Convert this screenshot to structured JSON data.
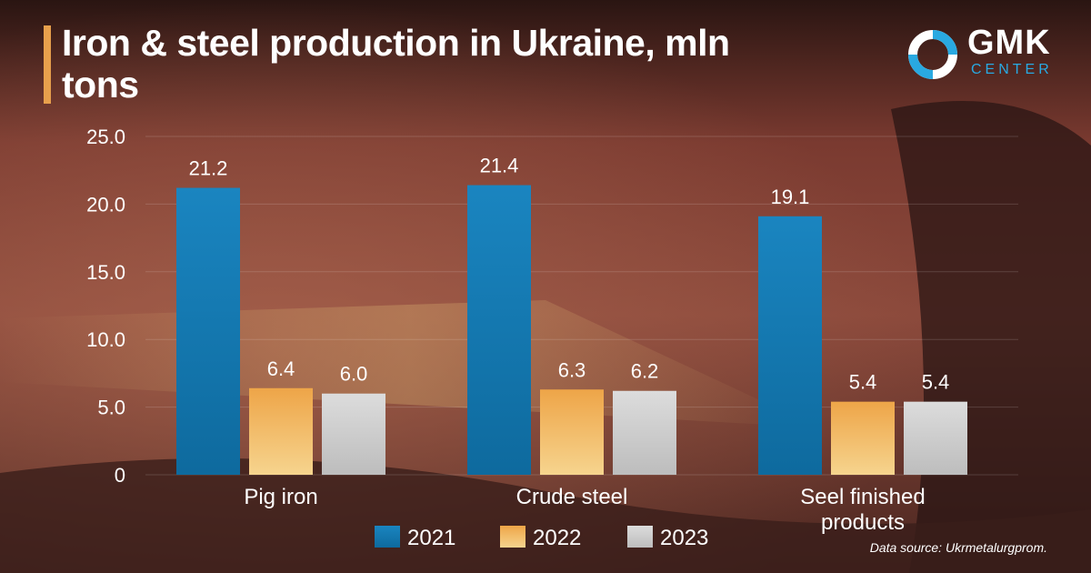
{
  "title": "Iron & steel production in Ukraine, mln tons",
  "logo": {
    "main": "GMK",
    "sub": "CENTER"
  },
  "source": "Data source: Ukrmetalurgprom.",
  "colors": {
    "2021": "#1b86bd",
    "2022": "#eea548",
    "2023": "#d4d4d4",
    "accent": "#e8a04c"
  },
  "chart_data": {
    "type": "bar",
    "title": "Iron & steel production in Ukraine, mln tons",
    "categories": [
      "Pig iron",
      "Crude steel",
      "Seel finished products"
    ],
    "series": [
      {
        "name": "2021",
        "values": [
          21.2,
          21.4,
          19.1
        ],
        "labels": [
          "21.2",
          "21.4",
          "19.1"
        ]
      },
      {
        "name": "2022",
        "values": [
          6.4,
          6.3,
          5.4
        ],
        "labels": [
          "6.4",
          "6.3",
          "5.4"
        ]
      },
      {
        "name": "2023",
        "values": [
          6.0,
          6.2,
          5.4
        ],
        "labels": [
          "6.0",
          "6.2",
          "5.4"
        ]
      }
    ],
    "yticks": [
      "0",
      "5.0",
      "10.0",
      "15.0",
      "20.0",
      "25.0"
    ],
    "ytick_values": [
      0,
      5,
      10,
      15,
      20,
      25
    ],
    "ylim": [
      0,
      25
    ],
    "xlabel": "",
    "ylabel": "",
    "legend": "bottom-center"
  }
}
